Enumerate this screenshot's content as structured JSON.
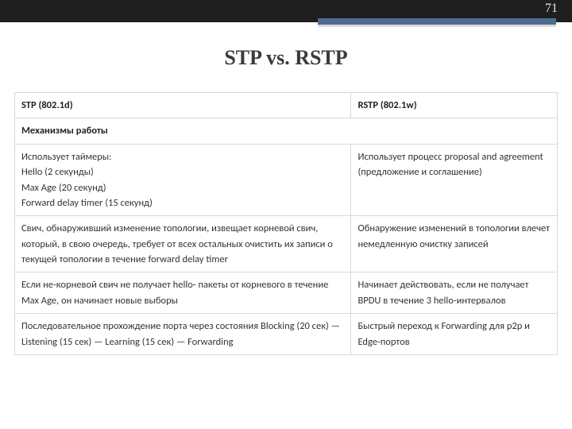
{
  "page_number": "71",
  "title": "STP vs. RSTP",
  "table": {
    "col_widths_pct": [
      62,
      38
    ],
    "headers": [
      "STP (802.1d)",
      "RSTP (802.1w)"
    ],
    "section_label": "Механизмы работы",
    "rows": [
      {
        "left": "Использует таймеры:\nHello (2 секунды)\nMax Age (20 секунд)\nForward delay timer (15 секунд)",
        "right": "Использует процесс proposal and agreement (предложение и соглашение)"
      },
      {
        "left": "Свич, обнаруживший изменение топологии, извещает корневой свич, который, в свою очередь, требует от всех остальных очистить их записи о текущей топологии в течение forward delay timer",
        "right": "Обнаружение изменений в топологии влечет немедленную очистку записей"
      },
      {
        "left": "Если не-корневой свич не получает hello- пакеты от корневого в течение Max Age, он начинает новые выборы",
        "right": "Начинает действовать, если не получает BPDU в течение 3 hello-интервалов"
      },
      {
        "left": "Последовательное прохождение порта через состояния Blocking (20 сек) — Listening (15 сек) — Learning (15 сек) — Forwarding",
        "right": "Быстрый переход к Forwarding для p2p и Edge-портов"
      }
    ]
  },
  "colors": {
    "topbar_dark": "#1f1f1f",
    "topbar_accent": "#4f6b8f",
    "border": "#d9d9d9",
    "text": "#333333",
    "title": "#3b3b3b",
    "page_number": "#e6e6e6",
    "background": "#ffffff"
  },
  "fonts": {
    "title_family": "Georgia, Times New Roman, serif",
    "body_family": "Calibri, Arial, sans-serif",
    "title_size_pt": 20,
    "body_size_pt": 9.5
  }
}
